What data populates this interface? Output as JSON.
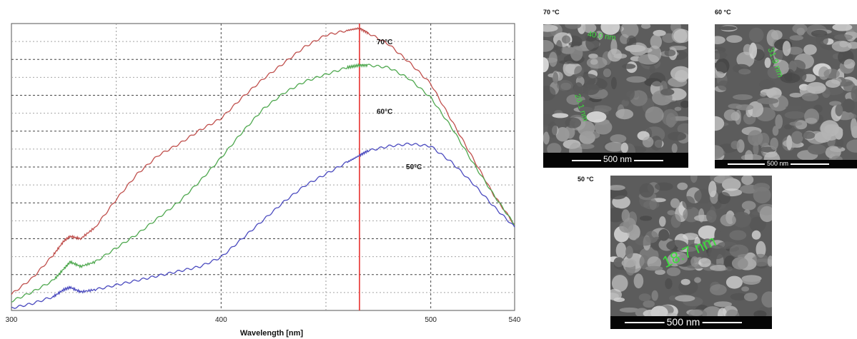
{
  "chart_data": {
    "type": "line",
    "xlabel": "Wavelength [nm]",
    "ylabel": "",
    "xlim": [
      300,
      540
    ],
    "ylim": [
      0,
      6.2
    ],
    "grid": true,
    "x_ticks": [
      "300",
      "400",
      "500",
      "540"
    ],
    "vline": {
      "x": 466,
      "color": "#e8312f"
    },
    "series": [
      {
        "name": "70°C",
        "color": "#c0504d",
        "x": [
          300,
          310,
          320,
          325,
          328,
          333,
          340,
          350,
          360,
          370,
          380,
          390,
          400,
          410,
          420,
          430,
          440,
          450,
          460,
          466,
          470,
          480,
          490,
          500,
          510,
          520,
          530,
          540
        ],
        "y": [
          0.35,
          0.7,
          1.2,
          1.5,
          1.6,
          1.55,
          1.8,
          2.4,
          2.95,
          3.35,
          3.6,
          3.9,
          4.15,
          4.6,
          5.0,
          5.35,
          5.7,
          5.95,
          6.05,
          6.1,
          6.0,
          5.75,
          5.35,
          4.9,
          4.1,
          3.3,
          2.5,
          1.85
        ]
      },
      {
        "name": "60°C",
        "color": "#4fa84f",
        "x": [
          300,
          310,
          320,
          325,
          328,
          333,
          340,
          350,
          360,
          370,
          380,
          390,
          400,
          410,
          420,
          430,
          440,
          450,
          460,
          466,
          470,
          480,
          490,
          500,
          510,
          520,
          530,
          540
        ],
        "y": [
          0.2,
          0.4,
          0.65,
          0.9,
          1.05,
          0.95,
          1.05,
          1.35,
          1.65,
          2.0,
          2.35,
          2.8,
          3.3,
          3.85,
          4.35,
          4.7,
          4.95,
          5.1,
          5.25,
          5.3,
          5.3,
          5.25,
          5.0,
          4.6,
          3.95,
          3.2,
          2.5,
          1.85
        ]
      },
      {
        "name": "50°C",
        "color": "#4b4bbf",
        "x": [
          300,
          310,
          320,
          325,
          328,
          333,
          340,
          350,
          360,
          370,
          380,
          390,
          400,
          410,
          420,
          430,
          440,
          450,
          460,
          466,
          470,
          480,
          490,
          500,
          510,
          520,
          530,
          540
        ],
        "y": [
          0.05,
          0.15,
          0.3,
          0.45,
          0.5,
          0.4,
          0.45,
          0.55,
          0.65,
          0.75,
          0.85,
          0.95,
          1.15,
          1.55,
          1.95,
          2.35,
          2.7,
          2.95,
          3.2,
          3.35,
          3.45,
          3.55,
          3.6,
          3.55,
          3.2,
          2.75,
          2.25,
          1.8
        ]
      }
    ],
    "labels": [
      {
        "text": "70°C",
        "x": 478,
        "y": 5.75
      },
      {
        "text": "60°C",
        "x": 478,
        "y": 4.25
      },
      {
        "text": "50°C",
        "x": 492,
        "y": 3.05
      }
    ]
  },
  "sem_panels": [
    {
      "id": "70",
      "caption": "70 °C",
      "scalebar": "500 nm",
      "measurements": [
        "40.0 nm",
        "20.1 nm"
      ]
    },
    {
      "id": "60",
      "caption": "60 °C",
      "scalebar": "500 nm",
      "measurements": [
        "31.9 nm"
      ]
    },
    {
      "id": "50",
      "caption": "50 °C",
      "scalebar": "500 nm",
      "measurements": [
        "18.7 nm"
      ]
    }
  ]
}
